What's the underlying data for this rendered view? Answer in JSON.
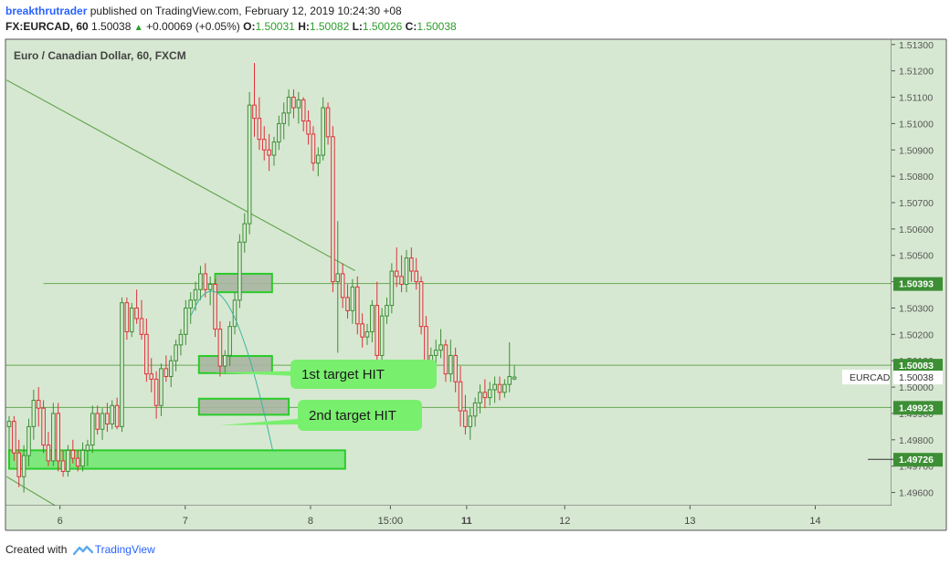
{
  "header": {
    "author": "breakthrutrader",
    "published_text": "published on TradingView.com, February 12, 2019 10:24:30 +08",
    "symbol": "FX:EURCAD, 60",
    "last": "1.50038",
    "change": "+0.00069 (+0.05%)",
    "o_label": "O:",
    "o_value": "1.50031",
    "h_label": "H:",
    "h_value": "1.50082",
    "l_label": "L:",
    "l_value": "1.50026",
    "c_label": "C:",
    "c_value": "1.50038"
  },
  "chart_data": {
    "type": "candlestick",
    "title": "Euro / Canadian Dollar, 60, FXCM",
    "symbol_label": "EURCAD",
    "last_price": 1.50038,
    "ylim": [
      1.4955,
      1.5132
    ],
    "y_ticks": [
      1.496,
      1.497,
      1.498,
      1.499,
      1.5,
      1.501,
      1.502,
      1.503,
      1.504,
      1.505,
      1.506,
      1.507,
      1.508,
      1.509,
      1.51,
      1.511,
      1.512,
      1.513
    ],
    "x_labels": [
      {
        "label": "6",
        "bold": false,
        "x": 3.0
      },
      {
        "label": "7",
        "bold": false,
        "x": 9.9
      },
      {
        "label": "8",
        "bold": false,
        "x": 16.8
      },
      {
        "label": "15:00",
        "bold": false,
        "x": 21.2
      },
      {
        "label": "11",
        "bold": true,
        "x": 25.4
      },
      {
        "label": "12",
        "bold": false,
        "x": 30.8
      },
      {
        "label": "13",
        "bold": false,
        "x": 37.7
      },
      {
        "label": "14",
        "bold": false,
        "x": 44.6
      }
    ],
    "x_range": [
      0,
      48.8
    ],
    "candles": [
      [
        1.4985,
        1.4989,
        1.4976,
        1.4987
      ],
      [
        1.4987,
        1.4989,
        1.4972,
        1.4975
      ],
      [
        1.4975,
        1.498,
        1.4962,
        1.4966
      ],
      [
        1.4966,
        1.4978,
        1.496,
        1.4974
      ],
      [
        1.4974,
        1.4988,
        1.497,
        1.4985
      ],
      [
        1.4985,
        1.4999,
        1.498,
        1.4995
      ],
      [
        1.4995,
        1.5,
        1.4985,
        1.4992
      ],
      [
        1.4992,
        1.4995,
        1.4975,
        1.4978
      ],
      [
        1.4978,
        1.4983,
        1.497,
        1.4972
      ],
      [
        1.4972,
        1.4994,
        1.497,
        1.499
      ],
      [
        1.499,
        1.4994,
        1.4968,
        1.4972
      ],
      [
        1.4972,
        1.4976,
        1.4966,
        1.4968
      ],
      [
        1.4968,
        1.4978,
        1.4966,
        1.4976
      ],
      [
        1.4976,
        1.498,
        1.4971,
        1.4973
      ],
      [
        1.4973,
        1.4976,
        1.4968,
        1.497
      ],
      [
        1.497,
        1.4979,
        1.4968,
        1.4976
      ],
      [
        1.4976,
        1.498,
        1.497,
        1.4978
      ],
      [
        1.4978,
        1.4993,
        1.4975,
        1.499
      ],
      [
        1.499,
        1.4993,
        1.4982,
        1.4984
      ],
      [
        1.4984,
        1.4992,
        1.498,
        1.499
      ],
      [
        1.499,
        1.4994,
        1.4983,
        1.4986
      ],
      [
        1.4986,
        1.4995,
        1.4984,
        1.4993
      ],
      [
        1.4993,
        1.4996,
        1.4984,
        1.4985
      ],
      [
        1.4985,
        1.5034,
        1.4983,
        1.5032
      ],
      [
        1.5032,
        1.5034,
        1.5018,
        1.5021
      ],
      [
        1.5021,
        1.5032,
        1.5019,
        1.503
      ],
      [
        1.503,
        1.5037,
        1.5024,
        1.5026
      ],
      [
        1.5026,
        1.5033,
        1.5018,
        1.502
      ],
      [
        1.502,
        1.5026,
        1.5002,
        1.5005
      ],
      [
        1.5005,
        1.5011,
        1.4998,
        1.5003
      ],
      [
        1.5003,
        1.5006,
        1.4988,
        1.4993
      ],
      [
        1.4993,
        1.5009,
        1.4989,
        1.5007
      ],
      [
        1.5007,
        1.5012,
        1.5002,
        1.5004
      ],
      [
        1.5004,
        1.5012,
        1.5,
        1.501
      ],
      [
        1.501,
        1.5018,
        1.5006,
        1.5016
      ],
      [
        1.5016,
        1.5022,
        1.5012,
        1.502
      ],
      [
        1.502,
        1.5033,
        1.5016,
        1.503
      ],
      [
        1.503,
        1.5036,
        1.5024,
        1.5033
      ],
      [
        1.5033,
        1.504,
        1.5029,
        1.5037
      ],
      [
        1.5037,
        1.5046,
        1.5033,
        1.5043
      ],
      [
        1.5043,
        1.5047,
        1.5034,
        1.5037
      ],
      [
        1.5037,
        1.5042,
        1.5031,
        1.5039
      ],
      [
        1.5039,
        1.5041,
        1.5019,
        1.5022
      ],
      [
        1.5022,
        1.5025,
        1.5004,
        1.5008
      ],
      [
        1.5008,
        1.5014,
        1.5005,
        1.5012
      ],
      [
        1.5012,
        1.5025,
        1.5008,
        1.5023
      ],
      [
        1.5023,
        1.5036,
        1.502,
        1.5033
      ],
      [
        1.5033,
        1.5058,
        1.503,
        1.5055
      ],
      [
        1.5055,
        1.5066,
        1.5051,
        1.5062
      ],
      [
        1.5062,
        1.5112,
        1.5058,
        1.5107
      ],
      [
        1.5107,
        1.5123,
        1.5095,
        1.5102
      ],
      [
        1.5102,
        1.511,
        1.509,
        1.5094
      ],
      [
        1.5094,
        1.5099,
        1.5086,
        1.509
      ],
      [
        1.509,
        1.5096,
        1.5082,
        1.5088
      ],
      [
        1.5088,
        1.5095,
        1.5084,
        1.5093
      ],
      [
        1.5093,
        1.5103,
        1.509,
        1.51
      ],
      [
        1.51,
        1.5108,
        1.5094,
        1.5104
      ],
      [
        1.5104,
        1.5113,
        1.5099,
        1.511
      ],
      [
        1.511,
        1.5113,
        1.5102,
        1.5106
      ],
      [
        1.5106,
        1.5112,
        1.51,
        1.5109
      ],
      [
        1.5109,
        1.511,
        1.5097,
        1.5101
      ],
      [
        1.5101,
        1.5105,
        1.5092,
        1.5096
      ],
      [
        1.5096,
        1.5099,
        1.5082,
        1.5085
      ],
      [
        1.5085,
        1.5091,
        1.508,
        1.5088
      ],
      [
        1.5088,
        1.511,
        1.5086,
        1.5106
      ],
      [
        1.5106,
        1.5108,
        1.5092,
        1.5095
      ],
      [
        1.5095,
        1.5099,
        1.5036,
        1.504
      ],
      [
        1.504,
        1.5063,
        1.5013,
        1.5043
      ],
      [
        1.5043,
        1.5047,
        1.503,
        1.5034
      ],
      [
        1.5034,
        1.5039,
        1.5026,
        1.5029
      ],
      [
        1.5029,
        1.5041,
        1.5024,
        1.5038
      ],
      [
        1.5038,
        1.5042,
        1.502,
        1.5024
      ],
      [
        1.5024,
        1.5028,
        1.5015,
        1.5019
      ],
      [
        1.5019,
        1.5024,
        1.5016,
        1.5021
      ],
      [
        1.5021,
        1.5033,
        1.5017,
        1.5031
      ],
      [
        1.5031,
        1.504,
        1.5007,
        1.5012
      ],
      [
        1.5012,
        1.503,
        1.5009,
        1.5027
      ],
      [
        1.5027,
        1.5034,
        1.5024,
        1.5031
      ],
      [
        1.5031,
        1.5047,
        1.5028,
        1.5044
      ],
      [
        1.5044,
        1.5053,
        1.5038,
        1.5042
      ],
      [
        1.5042,
        1.505,
        1.5036,
        1.5039
      ],
      [
        1.5039,
        1.5052,
        1.5036,
        1.5049
      ],
      [
        1.5049,
        1.5053,
        1.504,
        1.5044
      ],
      [
        1.5044,
        1.5049,
        1.5037,
        1.504
      ],
      [
        1.504,
        1.5042,
        1.502,
        1.5023
      ],
      [
        1.5023,
        1.5027,
        1.5006,
        1.501
      ],
      [
        1.501,
        1.5015,
        1.5004,
        1.5012
      ],
      [
        1.5012,
        1.5018,
        1.5008,
        1.5014
      ],
      [
        1.5014,
        1.5022,
        1.5011,
        1.5016
      ],
      [
        1.5016,
        1.5018,
        1.5002,
        1.5005
      ],
      [
        1.5005,
        1.5018,
        1.5002,
        1.5012
      ],
      [
        1.5012,
        1.5015,
        1.4998,
        1.5002
      ],
      [
        1.5002,
        1.5008,
        1.4985,
        1.4991
      ],
      [
        1.4991,
        1.4997,
        1.4982,
        1.4985
      ],
      [
        1.4985,
        1.4992,
        1.498,
        1.4989
      ],
      [
        1.4989,
        1.4996,
        1.4985,
        1.4994
      ],
      [
        1.4994,
        1.5001,
        1.499,
        1.4998
      ],
      [
        1.4998,
        1.5003,
        1.4992,
        1.4996
      ],
      [
        1.4996,
        1.5002,
        1.4993,
        1.4999
      ],
      [
        1.4999,
        1.5004,
        1.4994,
        1.5001
      ],
      [
        1.5001,
        1.5004,
        1.4995,
        1.4998
      ],
      [
        1.4998,
        1.5003,
        1.4996,
        1.5001
      ],
      [
        1.5001,
        1.5017,
        1.4998,
        1.5004
      ],
      [
        1.50031,
        1.50082,
        1.50026,
        1.50038
      ]
    ],
    "horizontal_levels": [
      {
        "value": 1.50393,
        "label": "1.50393",
        "x_from": 7.0
      },
      {
        "value": 1.50083,
        "label": "1.50083",
        "x_from": 0
      },
      {
        "value": 1.49923,
        "label": "1.49923",
        "x_from": 0
      },
      {
        "value": 1.49726,
        "label": "1.49726",
        "x_from": null
      }
    ],
    "zones": [
      {
        "x1": 0.0,
        "x2": 68.5,
        "y1": 1.4976,
        "y2": 1.4969
      },
      {
        "x1": 42.0,
        "x2": 53.6,
        "y1": 1.5043,
        "y2": 1.5036
      },
      {
        "x1": 38.7,
        "x2": 53.6,
        "y1": 1.50118,
        "y2": 1.50053
      },
      {
        "x1": 38.7,
        "x2": 57.0,
        "y1": 1.49956,
        "y2": 1.49895
      }
    ],
    "trendlines": [
      {
        "x1": -0.5,
        "y1": 1.51165,
        "x2": 70.5,
        "y2": 1.50442
      },
      {
        "x1": -0.5,
        "y1": 1.4966,
        "x2": 13.0,
        "y2": 1.4951
      }
    ],
    "projection_curve": {
      "x0": 37.0,
      "y0": 1.50268,
      "cx1": 41.0,
      "cy1": 1.5045,
      "cx2": 46.0,
      "cy2": 1.5042,
      "x3": 53.7,
      "y3": 1.49762
    },
    "callouts": [
      {
        "text": "1st target HIT",
        "tip_x": 41.6,
        "tip_y": 1.50055
      },
      {
        "text": "2nd target HIT",
        "tip_x": 43.0,
        "tip_y": 1.49855
      }
    ]
  },
  "footer": {
    "created_with": "Created with",
    "brand": "TradingView"
  },
  "colors": {
    "chart_bg": "#d7e8d2",
    "bull": "#3d8f35",
    "bear": "#e0303a",
    "line": "#66a853",
    "zone_fill": "#a9b5a0",
    "zone_stroke": "#29cc29",
    "zone_bright": "#6fe66f",
    "callout": "#79ef6e",
    "curve": "#3bb3a0"
  }
}
